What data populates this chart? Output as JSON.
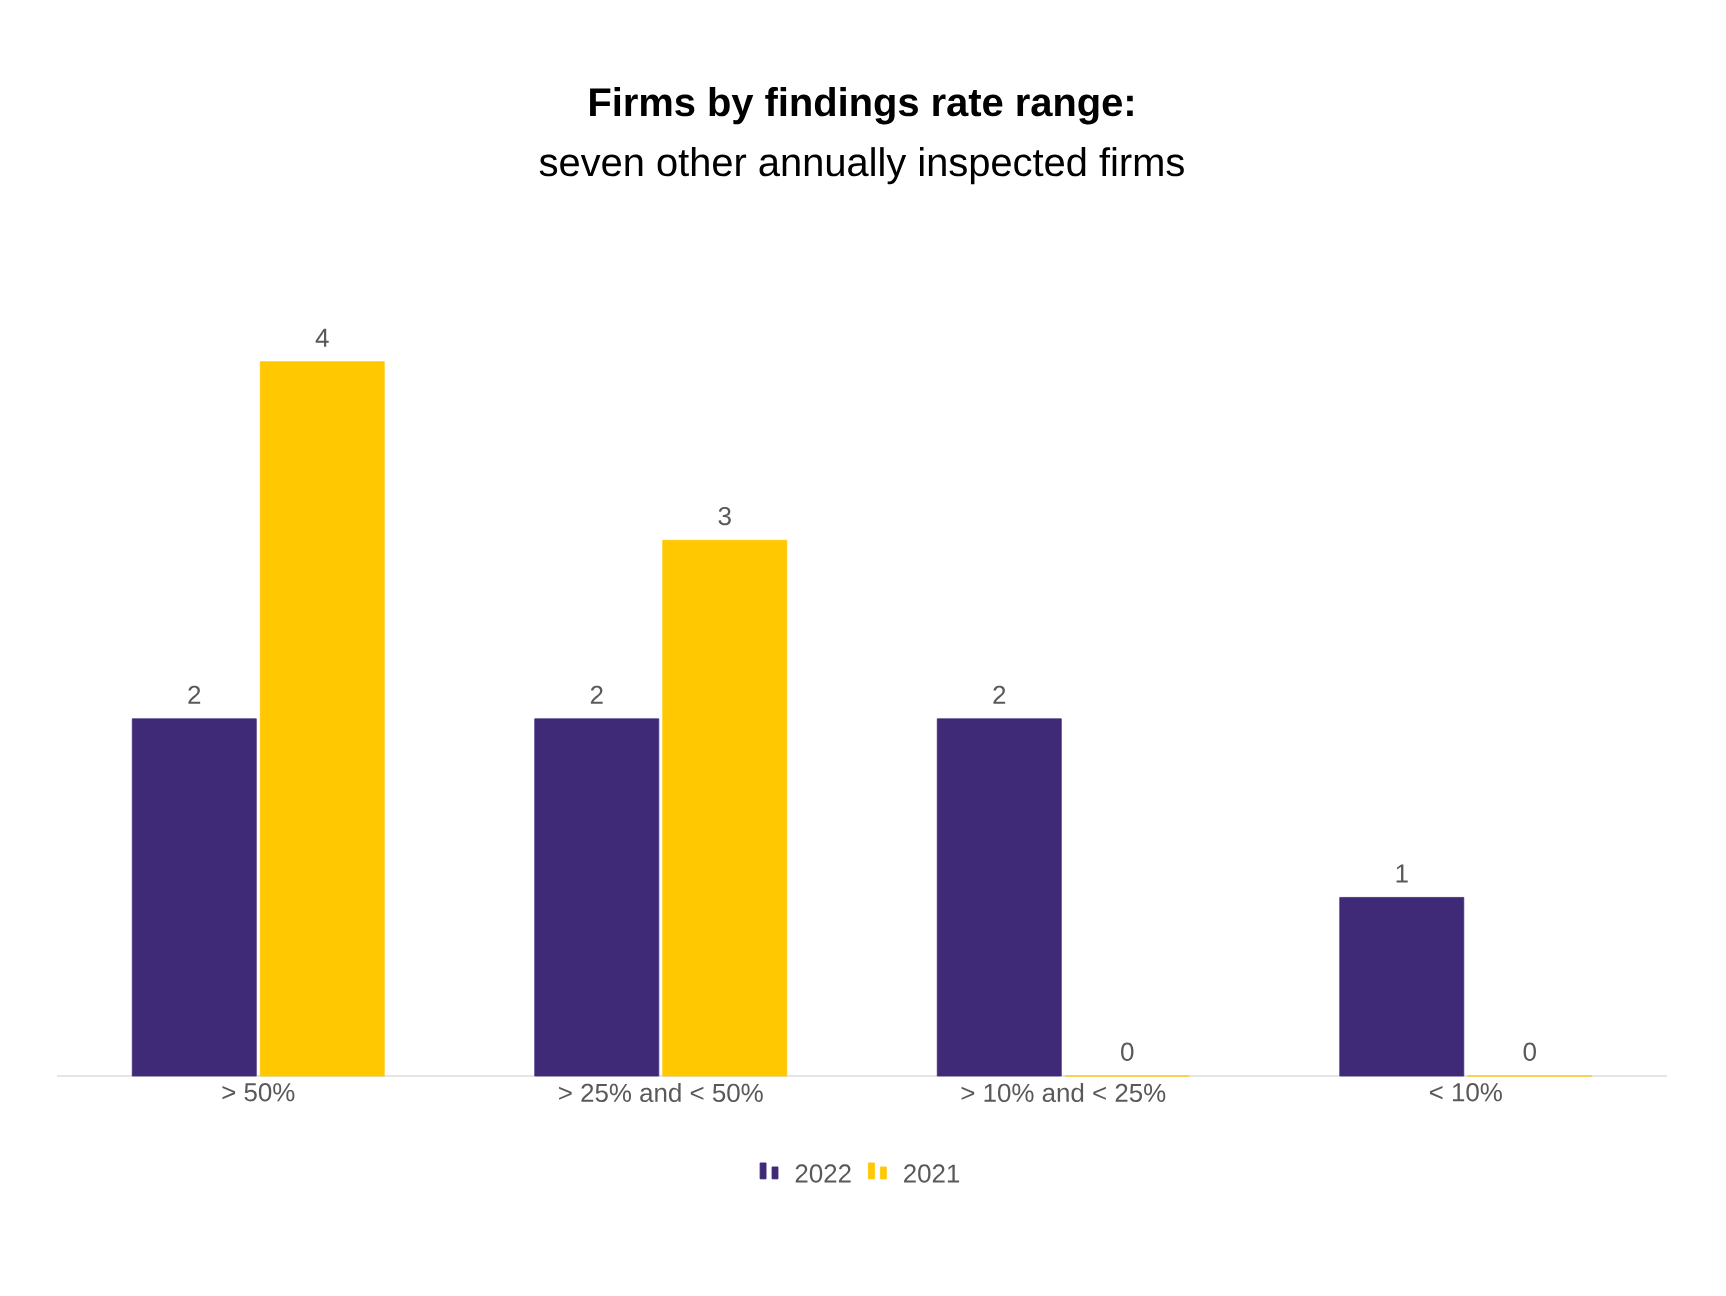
{
  "chart_data": {
    "type": "bar",
    "title": "Firms by findings rate range:",
    "subtitle": "seven other annually inspected firms",
    "categories": [
      "> 50%",
      "> 25% and < 50%",
      "> 10% and < 25%",
      "< 10%"
    ],
    "series": [
      {
        "name": "2022",
        "color": "#3f2a78",
        "values": [
          2,
          2,
          2,
          1
        ]
      },
      {
        "name": "2021",
        "color": "#ffc800",
        "values": [
          4,
          3,
          0,
          0
        ]
      }
    ],
    "data_labels": true,
    "legend": "bottom"
  }
}
